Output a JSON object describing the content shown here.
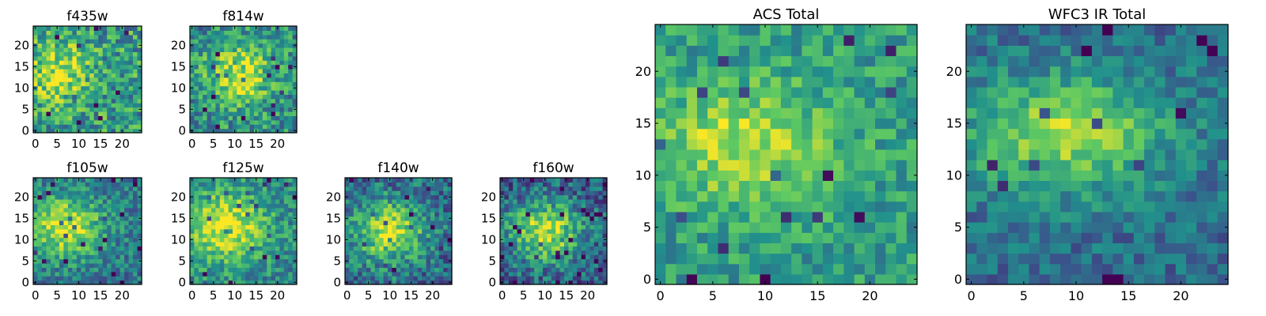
{
  "colormap": [
    "#440154",
    "#3b528b",
    "#21918c",
    "#5ec962",
    "#fde725"
  ],
  "chart_data": [
    {
      "type": "heatmap",
      "title": "f435w",
      "grid_size": 25,
      "xlim": [
        -0.5,
        24.5
      ],
      "ylim": [
        -0.5,
        24.5
      ],
      "xticks": [
        0,
        5,
        10,
        15,
        20
      ],
      "yticks": [
        0,
        5,
        10,
        15,
        20
      ],
      "blob": {
        "x": 5,
        "y": 14,
        "sx": 5,
        "sy": 5,
        "amp": 0.35
      },
      "base": 0.55,
      "noise": 0.55,
      "seed": 11
    },
    {
      "type": "heatmap",
      "title": "f814w",
      "grid_size": 25,
      "xlim": [
        -0.5,
        24.5
      ],
      "ylim": [
        -0.5,
        24.5
      ],
      "xticks": [
        0,
        5,
        10,
        15,
        20
      ],
      "yticks": [
        0,
        5,
        10,
        15,
        20
      ],
      "blob": {
        "x": 11,
        "y": 13,
        "sx": 5,
        "sy": 5,
        "amp": 0.45
      },
      "base": 0.5,
      "noise": 0.5,
      "seed": 23
    },
    {
      "type": "heatmap",
      "title": "f105w",
      "grid_size": 25,
      "xlim": [
        -0.5,
        24.5
      ],
      "ylim": [
        -0.5,
        24.5
      ],
      "xticks": [
        0,
        5,
        10,
        15,
        20
      ],
      "yticks": [
        0,
        5,
        10,
        15,
        20
      ],
      "blob": {
        "x": 7,
        "y": 13,
        "sx": 6,
        "sy": 5,
        "amp": 0.55
      },
      "base": 0.4,
      "noise": 0.4,
      "seed": 37
    },
    {
      "type": "heatmap",
      "title": "f125w",
      "grid_size": 25,
      "xlim": [
        -0.5,
        24.5
      ],
      "ylim": [
        -0.5,
        24.5
      ],
      "xticks": [
        0,
        5,
        10,
        15,
        20
      ],
      "yticks": [
        0,
        5,
        10,
        15,
        20
      ],
      "blob": {
        "x": 8,
        "y": 13,
        "sx": 7,
        "sy": 6,
        "amp": 0.5
      },
      "base": 0.45,
      "noise": 0.4,
      "seed": 41
    },
    {
      "type": "heatmap",
      "title": "f140w",
      "grid_size": 25,
      "xlim": [
        -0.5,
        24.5
      ],
      "ylim": [
        -0.5,
        24.5
      ],
      "xticks": [
        0,
        5,
        10,
        15,
        20
      ],
      "yticks": [
        0,
        5,
        10,
        15,
        20
      ],
      "blob": {
        "x": 10,
        "y": 12,
        "sx": 6,
        "sy": 5,
        "amp": 0.55
      },
      "base": 0.35,
      "noise": 0.45,
      "seed": 53
    },
    {
      "type": "heatmap",
      "title": "f160w",
      "grid_size": 25,
      "xlim": [
        -0.5,
        24.5
      ],
      "ylim": [
        -0.5,
        24.5
      ],
      "xticks": [
        0,
        5,
        10,
        15,
        20
      ],
      "yticks": [
        0,
        5,
        10,
        15,
        20
      ],
      "blob": {
        "x": 10,
        "y": 12,
        "sx": 6,
        "sy": 5,
        "amp": 0.6
      },
      "base": 0.3,
      "noise": 0.45,
      "seed": 67
    },
    {
      "type": "heatmap",
      "title": "ACS Total",
      "grid_size": 25,
      "xlim": [
        -0.5,
        24.5
      ],
      "ylim": [
        -0.5,
        24.5
      ],
      "xticks": [
        0,
        5,
        10,
        15,
        20
      ],
      "yticks": [
        0,
        5,
        10,
        15,
        20
      ],
      "blob": {
        "x": 8,
        "y": 13,
        "sx": 6,
        "sy": 4,
        "amp": 0.35
      },
      "base": 0.55,
      "noise": 0.35,
      "seed": 79
    },
    {
      "type": "heatmap",
      "title": "WFC3 IR Total",
      "grid_size": 25,
      "xlim": [
        -0.5,
        24.5
      ],
      "ylim": [
        -0.5,
        24.5
      ],
      "xticks": [
        0,
        5,
        10,
        15,
        20
      ],
      "yticks": [
        0,
        5,
        10,
        15,
        20
      ],
      "blob": {
        "x": 9,
        "y": 14,
        "sx": 7,
        "sy": 4,
        "amp": 0.5
      },
      "base": 0.35,
      "noise": 0.3,
      "seed": 97
    }
  ]
}
